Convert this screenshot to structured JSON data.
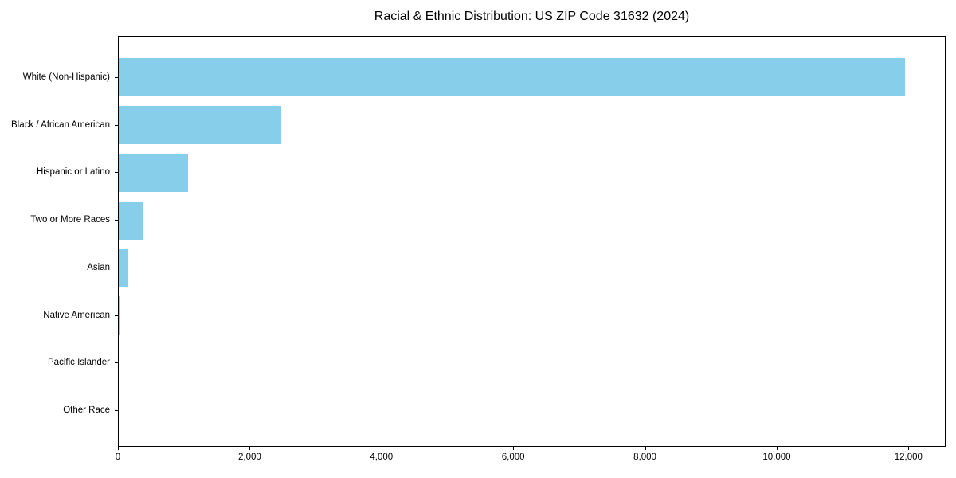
{
  "chart_data": {
    "type": "bar",
    "orientation": "horizontal",
    "title": "Racial & Ethnic Distribution: US ZIP Code 31632 (2024)",
    "categories": [
      "White (Non-Hispanic)",
      "Black / African American",
      "Hispanic or Latino",
      "Two or More Races",
      "Asian",
      "Native American",
      "Pacific Islander",
      "Other Race"
    ],
    "values": [
      11930,
      2470,
      1050,
      360,
      140,
      30,
      0,
      0
    ],
    "xlabel": "",
    "ylabel": "",
    "xlim": [
      0,
      12540
    ],
    "x_ticks": [
      0,
      2000,
      4000,
      6000,
      8000,
      10000,
      12000
    ],
    "x_tick_labels": [
      "0",
      "2,000",
      "4,000",
      "6,000",
      "8,000",
      "10,000",
      "12,000"
    ],
    "bar_color": "#87CEEB",
    "background_color": "#ffffff",
    "spine_color": "#000000",
    "grid": false,
    "legend": null
  }
}
